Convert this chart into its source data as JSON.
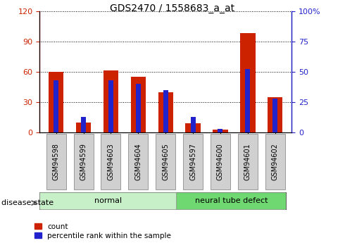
{
  "title": "GDS2470 / 1558683_a_at",
  "samples": [
    "GSM94598",
    "GSM94599",
    "GSM94603",
    "GSM94604",
    "GSM94605",
    "GSM94597",
    "GSM94600",
    "GSM94601",
    "GSM94602"
  ],
  "red_values": [
    60,
    10,
    61,
    55,
    40,
    9,
    3,
    98,
    35
  ],
  "blue_values": [
    43,
    13,
    43,
    40,
    35,
    13,
    3,
    52,
    28
  ],
  "groups": [
    {
      "label": "normal",
      "start": 0,
      "end": 5,
      "color": "#c8f0c8"
    },
    {
      "label": "neural tube defect",
      "start": 5,
      "end": 9,
      "color": "#70d870"
    }
  ],
  "left_ylim": [
    0,
    120
  ],
  "right_ylim": [
    0,
    100
  ],
  "left_yticks": [
    0,
    30,
    60,
    90,
    120
  ],
  "right_yticks": [
    0,
    25,
    50,
    75,
    100
  ],
  "left_yticklabels": [
    "0",
    "30",
    "60",
    "90",
    "120"
  ],
  "right_yticklabels": [
    "0",
    "25",
    "50",
    "75",
    "100%"
  ],
  "red_color": "#cc2200",
  "blue_color": "#2222cc",
  "legend_red": "count",
  "legend_blue": "percentile rank within the sample",
  "red_bar_width": 0.55,
  "blue_bar_width": 0.18,
  "disease_state_label": "disease state",
  "tick_bg_color": "#d0d0d0",
  "tick_border_color": "#999999"
}
